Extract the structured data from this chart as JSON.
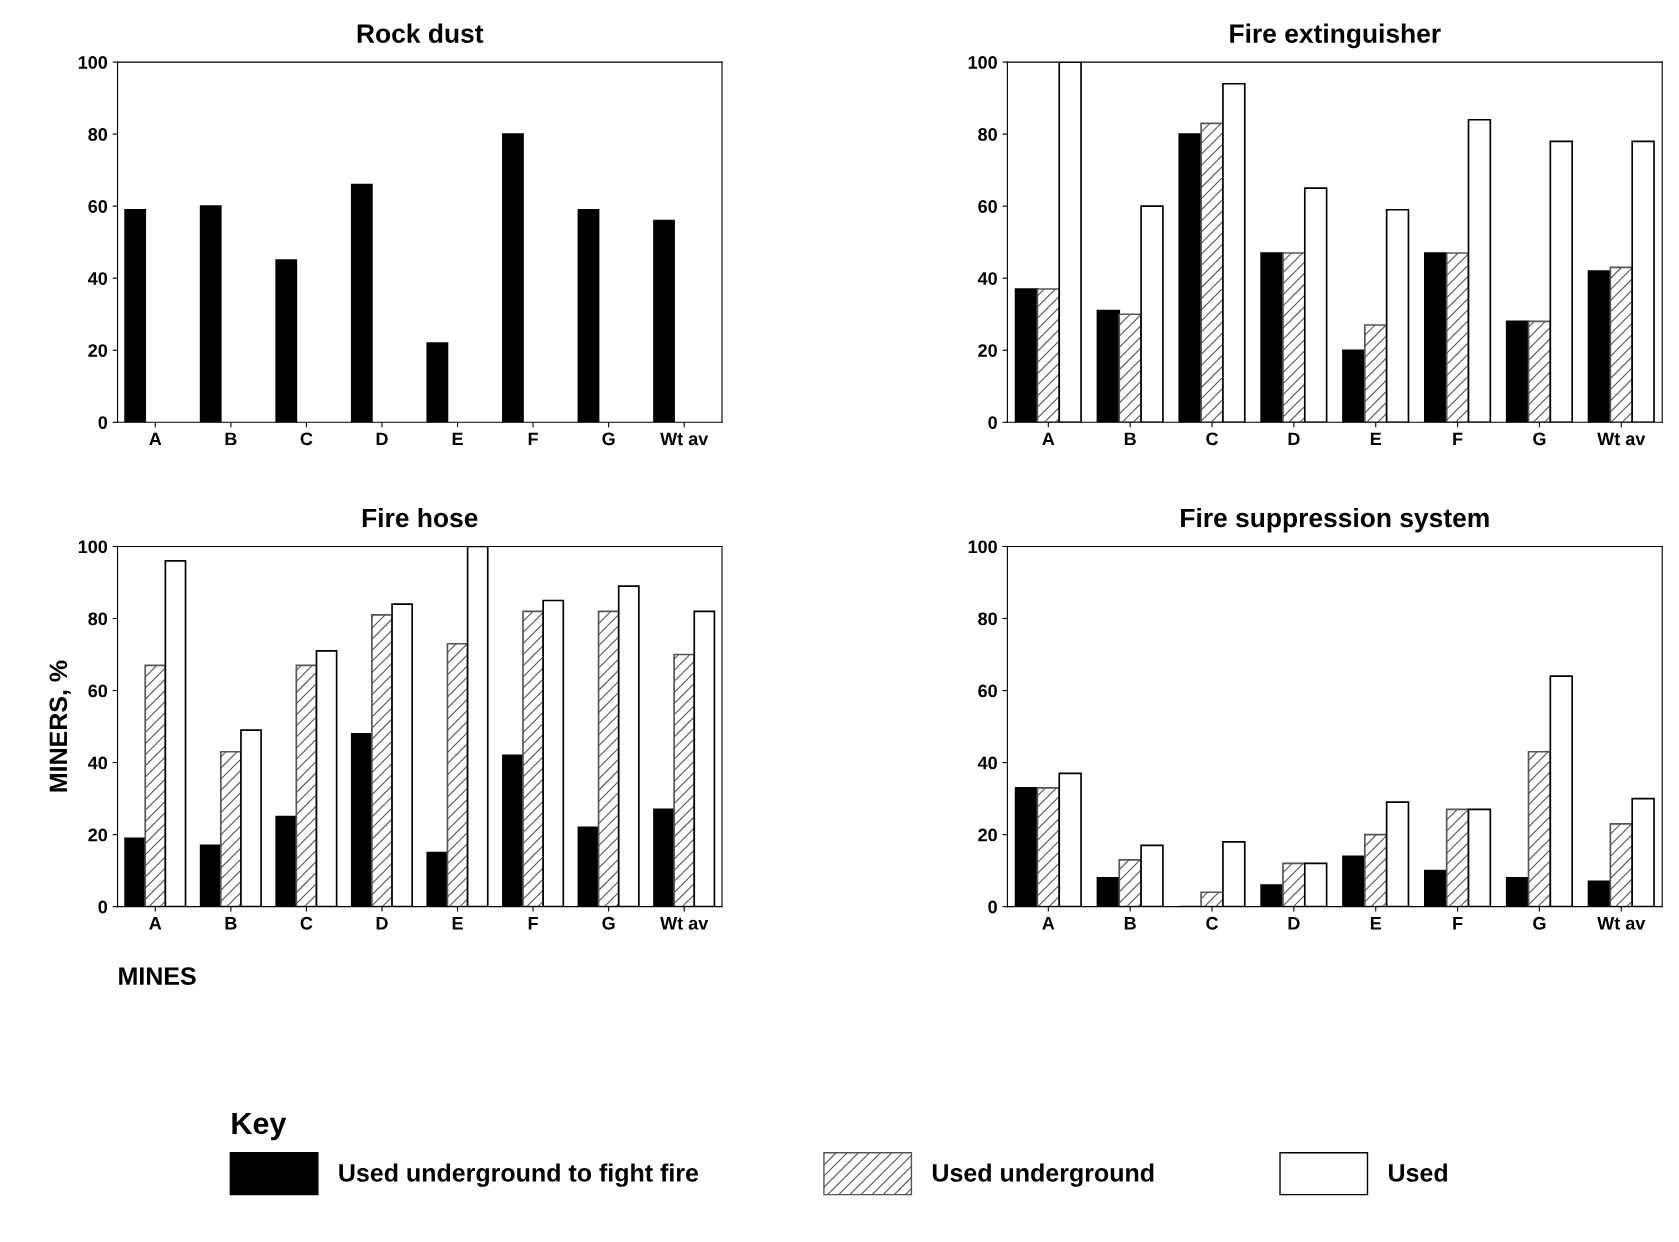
{
  "chart_data": [
    {
      "type": "bar",
      "title": "Rock dust",
      "categories": [
        "A",
        "B",
        "C",
        "D",
        "E",
        "F",
        "G",
        "Wt av"
      ],
      "ylim": [
        0,
        100
      ],
      "yticks": [
        0,
        20,
        40,
        60,
        80,
        100
      ],
      "grid": false,
      "series": [
        {
          "name": "Used underground to fight fire",
          "color": "#000000",
          "values": [
            59,
            60,
            45,
            66,
            22,
            80,
            59,
            56
          ]
        }
      ]
    },
    {
      "type": "bar",
      "title": "Fire extinguisher",
      "legend": "bottom",
      "categories": [
        "A",
        "B",
        "C",
        "D",
        "E",
        "F",
        "G",
        "Wt av"
      ],
      "ylim": [
        0,
        100
      ],
      "yticks": [
        0,
        20,
        40,
        60,
        80,
        100
      ],
      "grid": false,
      "series": [
        {
          "name": "Used underground to fight fire",
          "color": "#000000",
          "values": [
            37,
            31,
            80,
            47,
            20,
            47,
            28,
            42
          ]
        },
        {
          "name": "Used underground",
          "color": "#555555",
          "values": [
            37,
            30,
            83,
            47,
            27,
            47,
            28,
            43
          ]
        },
        {
          "name": "Used",
          "color": "#ffffff",
          "values": [
            100,
            60,
            94,
            65,
            59,
            84,
            78,
            78
          ]
        }
      ]
    },
    {
      "type": "bar",
      "title": "Fire hose",
      "xlabel": "MINES",
      "ylabel": "MINERS, %",
      "legend_title": "Key",
      "legend": "bottom",
      "categories": [
        "A",
        "B",
        "C",
        "D",
        "E",
        "F",
        "G",
        "Wt av"
      ],
      "ylim": [
        0,
        100
      ],
      "yticks": [
        0,
        20,
        40,
        60,
        80,
        100
      ],
      "grid": false,
      "series": [
        {
          "name": "Used underground to fight fire",
          "color": "#000000",
          "values": [
            19,
            17,
            25,
            48,
            15,
            42,
            22,
            27
          ]
        },
        {
          "name": "Used underground",
          "color": "#555555",
          "values": [
            67,
            43,
            67,
            81,
            73,
            82,
            82,
            70
          ]
        },
        {
          "name": "Used",
          "color": "#ffffff",
          "values": [
            96,
            49,
            71,
            84,
            100,
            85,
            89,
            82
          ]
        }
      ]
    },
    {
      "type": "bar",
      "title": "Fire suppression system",
      "categories": [
        "A",
        "B",
        "C",
        "D",
        "E",
        "F",
        "G",
        "Wt av"
      ],
      "ylim": [
        0,
        100
      ],
      "yticks": [
        0,
        20,
        40,
        60,
        80,
        100
      ],
      "grid": false,
      "series": [
        {
          "name": "Used underground to fight fire",
          "color": "#000000",
          "values": [
            33,
            8,
            0,
            6,
            14,
            10,
            8,
            7
          ]
        },
        {
          "name": "Used underground",
          "color": "#555555",
          "values": [
            33,
            13,
            4,
            12,
            20,
            27,
            43,
            23
          ]
        },
        {
          "name": "Used",
          "color": "#ffffff",
          "values": [
            37,
            17,
            18,
            12,
            29,
            27,
            64,
            30
          ]
        }
      ]
    }
  ]
}
